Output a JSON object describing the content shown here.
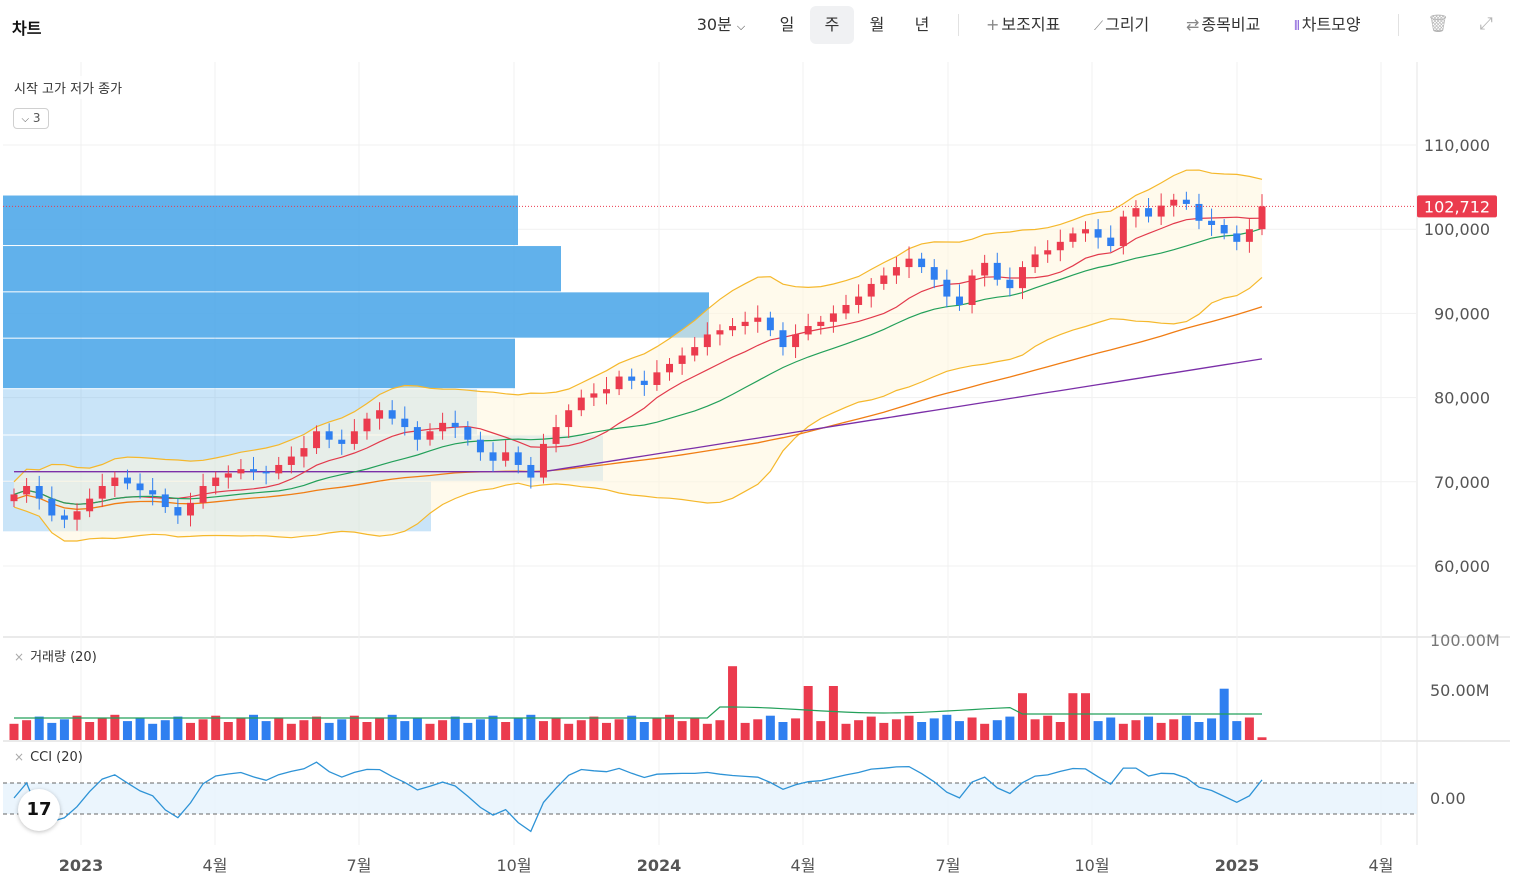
{
  "app": {
    "title": "차트"
  },
  "toolbar": {
    "interval": "30분",
    "interval_chevron": "chevron-down-icon",
    "periods": [
      "일",
      "주",
      "월",
      "년"
    ],
    "active_period": "주",
    "tools": [
      {
        "icon": "plus-icon",
        "label": "보조지표"
      },
      {
        "icon": "pencil-icon",
        "label": "그리기"
      },
      {
        "icon": "swap-icon",
        "label": "종목비교"
      },
      {
        "icon": "candles-icon",
        "label": "차트모양"
      }
    ],
    "right_icons": [
      "trash-icon",
      "expand-icon"
    ]
  },
  "legend": {
    "ohlc_label": "시작 고가 저가 종가",
    "collapse_count": "3"
  },
  "volume_pane": {
    "label": "거래량 (20)"
  },
  "cci_pane": {
    "label": "CCI (20)"
  },
  "colors": {
    "up": "#eb3b4e",
    "down": "#2f7ff0",
    "ma_fast": "#23a05a",
    "ma_mid": "#e23a4c",
    "ma_slow": "#f07d14",
    "ma_long": "#7b2fa8",
    "bollinger": "#f5b82c",
    "volume_profile": "#4ba6e8",
    "cci_line": "#2e93d6",
    "price_badge": "#eb3b4e"
  },
  "chart_data": {
    "type": "candlestick",
    "last_price": "102,712",
    "y_ticks": [
      "110,000",
      "100,000",
      "90,000",
      "80,000",
      "70,000",
      "60,000"
    ],
    "y_tick_values": [
      110000,
      100000,
      90000,
      80000,
      70000,
      60000
    ],
    "y_range": [
      53000,
      119000
    ],
    "x_ticks": [
      "2023",
      "4월",
      "7월",
      "10월",
      "2024",
      "4월",
      "7월",
      "10월",
      "2025",
      "4월"
    ],
    "x_tick_bold": [
      true,
      false,
      false,
      false,
      true,
      false,
      false,
      false,
      true,
      false
    ],
    "candles_weekly_close_approx": [
      68500,
      69500,
      68000,
      66000,
      65500,
      66500,
      68000,
      69500,
      70500,
      69800,
      69000,
      68500,
      67000,
      66000,
      67500,
      69500,
      70500,
      71000,
      71500,
      71200,
      71000,
      72000,
      73000,
      74000,
      76000,
      75000,
      74500,
      76000,
      77500,
      78500,
      77500,
      76500,
      75000,
      76000,
      77000,
      76500,
      75000,
      73500,
      72500,
      73500,
      72000,
      70500,
      74500,
      76500,
      78500,
      80000,
      80500,
      81000,
      82500,
      82000,
      81500,
      83000,
      84000,
      85000,
      86000,
      87500,
      88000,
      88500,
      89000,
      89500,
      88000,
      86000,
      87500,
      88500,
      89000,
      90000,
      91000,
      92000,
      93500,
      94500,
      95500,
      96500,
      95500,
      94000,
      92000,
      91000,
      94500,
      96000,
      94000,
      93000,
      95500,
      97000,
      97500,
      98500,
      99500,
      100000,
      99000,
      98000,
      101500,
      102500,
      101500,
      102800,
      103500,
      103000,
      101000,
      100500,
      99500,
      98500,
      100000,
      102712
    ],
    "volume_profile_levels": [
      {
        "price_from": 98000,
        "price_to": 104000
      },
      {
        "price_from": 92500,
        "price_to": 98000
      },
      {
        "price_from": 87000,
        "price_to": 92500
      },
      {
        "price_from": 81000,
        "price_to": 87000
      },
      {
        "price_from": 75500,
        "price_to": 81000
      },
      {
        "price_from": 70000,
        "price_to": 75500
      },
      {
        "price_from": 64000,
        "price_to": 70000
      }
    ],
    "volume_ticks": [
      "100.00M",
      "50.00M"
    ],
    "cci_ticks": [
      "0.00"
    ]
  }
}
